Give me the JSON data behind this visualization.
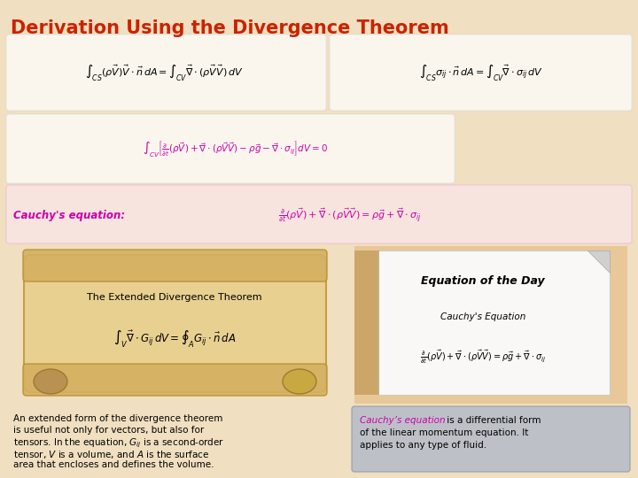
{
  "title": "Derivation Using the Divergence Theorem",
  "title_color": "#cc2200",
  "background_color": "#f0dfc0",
  "eq1_top": "$\\int_{CS} (\\rho\\vec{V})\\vec{V} \\cdot \\vec{n}\\, dA = \\int_{CV} \\vec{\\nabla} \\cdot (\\rho\\vec{V}\\vec{V})\\, dV$",
  "eq2_top": "$\\int_{CS} \\sigma_{ij} \\cdot \\vec{n}\\, dA = \\int_{CV} \\vec{\\nabla} \\cdot \\sigma_{ij}\\, dV$",
  "eq3": "$\\int_{CV} \\left[ \\frac{\\partial}{\\partial t}(\\rho\\vec{V}) + \\vec{\\nabla} \\cdot (\\rho\\vec{V}\\vec{V}) - \\rho\\vec{g} - \\vec{\\nabla} \\cdot \\sigma_{ij} \\right] dV = 0$",
  "cauchy_label": "Cauchy's equation:",
  "cauchy_eq": "$\\frac{\\partial}{\\partial t}(\\rho\\vec{V}) + \\vec{\\nabla} \\cdot (\\rho\\vec{V}\\vec{V}) = \\rho\\vec{g} + \\vec{\\nabla} \\cdot \\sigma_{ij}$",
  "cauchy_color": "#cc00aa",
  "scroll_title": "The Extended Divergence Theorem",
  "scroll_eq": "$\\int_{V} \\vec{\\nabla} \\cdot G_{ij}\\, dV = \\oint_{A} G_{ij} \\cdot \\vec{n}\\, dA$",
  "caption_left_lines": [
    "An extended form of the divergence theorem",
    "is useful not only for vectors, but also for",
    "tensors. In the equation, $G_{ij}$ is a second-order",
    "tensor, $V$ is a volume, and $A$ is the surface",
    "area that encloses and defines the volume."
  ],
  "caption_right_bg": "#b8bec8",
  "caption_right_lines": [
    " is a differential form",
    "of the linear momentum equation. It",
    "applies to any type of fluid."
  ]
}
